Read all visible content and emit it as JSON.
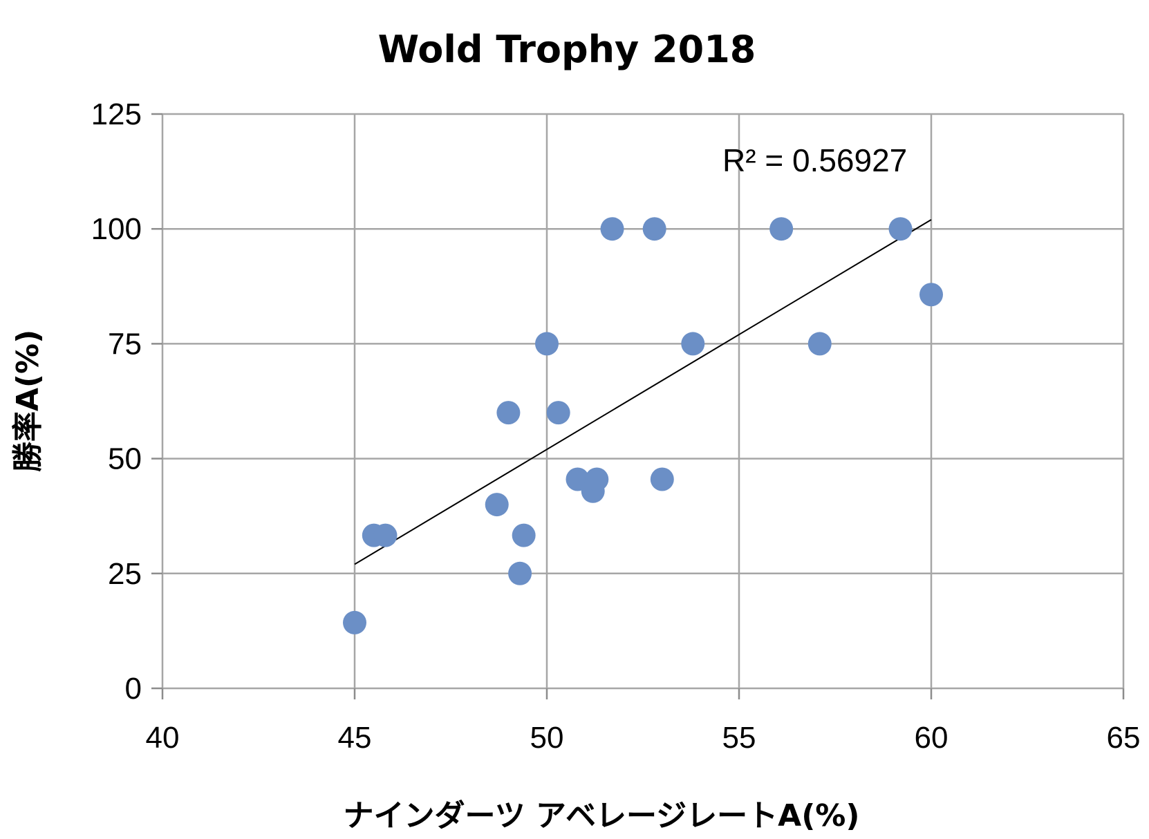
{
  "chart_data": {
    "type": "scatter",
    "title": "Wold Trophy 2018",
    "xlabel": "ナインダーツ アベレージレートA(%)",
    "ylabel": "勝率A(%)",
    "xlim": [
      40,
      65
    ],
    "ylim": [
      0,
      125
    ],
    "xticks": [
      40,
      45,
      50,
      55,
      60,
      65
    ],
    "yticks": [
      0,
      25,
      50,
      75,
      100,
      125
    ],
    "grid": true,
    "legend": "none",
    "point_color": "#6b8fc6",
    "series": [
      {
        "points": [
          {
            "x": 45.0,
            "y": 14.3
          },
          {
            "x": 45.5,
            "y": 33.3
          },
          {
            "x": 45.8,
            "y": 33.3
          },
          {
            "x": 48.7,
            "y": 40.0
          },
          {
            "x": 49.0,
            "y": 60.0
          },
          {
            "x": 49.3,
            "y": 25.0
          },
          {
            "x": 49.4,
            "y": 33.3
          },
          {
            "x": 50.0,
            "y": 75.0
          },
          {
            "x": 50.3,
            "y": 60.0
          },
          {
            "x": 50.8,
            "y": 45.5
          },
          {
            "x": 51.2,
            "y": 42.9
          },
          {
            "x": 51.3,
            "y": 45.5
          },
          {
            "x": 51.7,
            "y": 100.0
          },
          {
            "x": 52.8,
            "y": 100.0
          },
          {
            "x": 53.0,
            "y": 45.5
          },
          {
            "x": 53.8,
            "y": 75.0
          },
          {
            "x": 56.1,
            "y": 100.0
          },
          {
            "x": 57.1,
            "y": 75.0
          },
          {
            "x": 59.2,
            "y": 100.0
          },
          {
            "x": 60.0,
            "y": 85.7
          }
        ]
      }
    ],
    "trendline": {
      "type": "linear",
      "x_start": 45.0,
      "y_start": 27.0,
      "x_end": 60.0,
      "y_end": 102.0,
      "r_squared_label": "R² = 0.56927"
    }
  }
}
